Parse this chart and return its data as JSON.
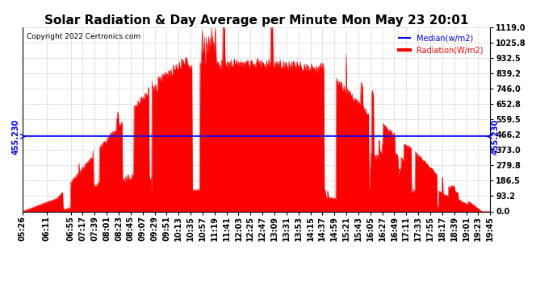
{
  "title": "Solar Radiation & Day Average per Minute Mon May 23 20:01",
  "copyright": "Copyright 2022 Certronics.com",
  "median_value": 455.23,
  "median_label": "455.230",
  "y_ticks": [
    0.0,
    93.2,
    186.5,
    279.8,
    373.0,
    466.2,
    559.5,
    652.8,
    746.0,
    839.2,
    932.5,
    1025.8,
    1119.0
  ],
  "y_max": 1119.0,
  "fill_color": "#ff0000",
  "median_color": "#0000ff",
  "background_color": "#ffffff",
  "grid_color": "#bbbbbb",
  "title_fontsize": 11,
  "tick_fontsize": 7,
  "x_tick_labels": [
    "05:26",
    "06:11",
    "06:55",
    "07:17",
    "07:39",
    "08:01",
    "08:23",
    "08:45",
    "09:07",
    "09:29",
    "09:51",
    "10:13",
    "10:35",
    "10:57",
    "11:19",
    "11:41",
    "12:03",
    "12:25",
    "12:47",
    "13:09",
    "13:31",
    "13:53",
    "14:15",
    "14:37",
    "14:59",
    "15:21",
    "15:43",
    "16:05",
    "16:27",
    "16:49",
    "17:11",
    "17:33",
    "17:55",
    "18:17",
    "18:39",
    "19:01",
    "19:23",
    "19:45"
  ],
  "legend_median_label": "Median(w/m2)",
  "legend_radiation_label": "Radiation(W/m2)"
}
